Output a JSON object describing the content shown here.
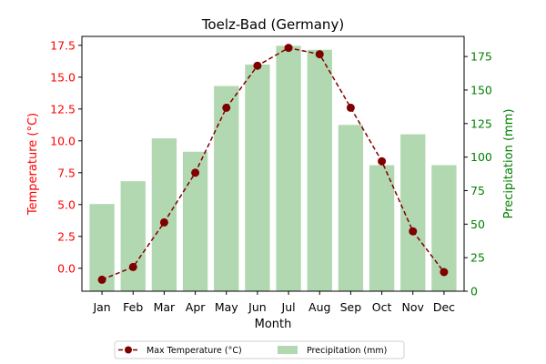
{
  "chart_data": {
    "type": "bar+line",
    "title": "Toelz-Bad (Germany)",
    "xlabel": "Month",
    "ylabel_left": "Temperature (°C)",
    "ylabel_right": "Precipitation (mm)",
    "categories": [
      "Jan",
      "Feb",
      "Mar",
      "Apr",
      "May",
      "Jun",
      "Jul",
      "Aug",
      "Sep",
      "Oct",
      "Nov",
      "Dec"
    ],
    "left_axis": {
      "ylim": [
        -1.8,
        18.2
      ],
      "ticks": [
        0.0,
        2.5,
        5.0,
        7.5,
        10.0,
        12.5,
        15.0,
        17.5
      ],
      "tick_labels": [
        "0.0",
        "2.5",
        "5.0",
        "7.5",
        "10.0",
        "12.5",
        "15.0",
        "17.5"
      ],
      "color": "#ff0000"
    },
    "right_axis": {
      "ylim": [
        0,
        190
      ],
      "ticks": [
        0,
        25,
        50,
        75,
        100,
        125,
        150,
        175
      ],
      "tick_labels": [
        "0",
        "25",
        "50",
        "75",
        "100",
        "125",
        "150",
        "175"
      ],
      "color": "#008000"
    },
    "series": [
      {
        "name": "Max Temperature (°C)",
        "kind": "line",
        "axis": "left",
        "color": "#800000",
        "linestyle": "dashed",
        "marker": "circle",
        "values": [
          -0.9,
          0.1,
          3.6,
          7.5,
          12.6,
          15.9,
          17.3,
          16.8,
          12.6,
          8.4,
          2.9,
          -0.3
        ]
      },
      {
        "name": "Precipitation (mm)",
        "kind": "bar",
        "axis": "right",
        "color": "#b2d8b2",
        "values": [
          65,
          82,
          114,
          104,
          153,
          169,
          183,
          180,
          124,
          94,
          117,
          94
        ]
      }
    ],
    "legend": {
      "placement": "bottom-center",
      "columns": 2
    },
    "grid": false
  }
}
